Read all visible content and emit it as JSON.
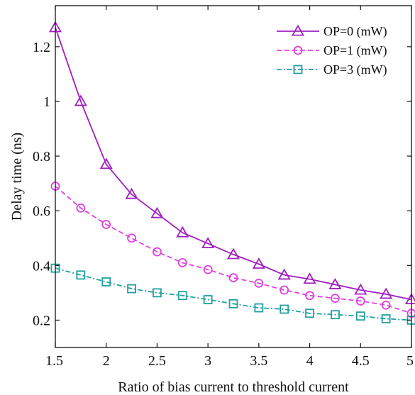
{
  "chart_data": {
    "type": "line",
    "title": "",
    "xlabel": "Ratio of bias current to threshold current",
    "ylabel": "Delay time (ns)",
    "xlim": [
      1.5,
      5
    ],
    "ylim": [
      0.1,
      1.35
    ],
    "x": [
      1.5,
      1.75,
      2,
      2.25,
      2.5,
      2.75,
      3,
      3.25,
      3.5,
      3.75,
      4,
      4.25,
      4.5,
      4.75,
      5
    ],
    "xticks": [
      1.5,
      2,
      2.5,
      3,
      3.5,
      4,
      4.5,
      5
    ],
    "xtick_labels": [
      "1.5",
      "2",
      "2.5",
      "3",
      "3.5",
      "4",
      "4.5",
      "5"
    ],
    "yticks": [
      0.2,
      0.4,
      0.6,
      0.8,
      1,
      1.2
    ],
    "ytick_labels": [
      "0.2",
      "0.4",
      "0.6",
      "0.8",
      "1",
      "1.2"
    ],
    "grid": false,
    "legend_position": "top-right",
    "series": [
      {
        "name": "OP=0 (mW)",
        "color": "#a020c0",
        "marker": "triangle",
        "line_style": "solid",
        "values": [
          1.27,
          1.0,
          0.77,
          0.66,
          0.59,
          0.52,
          0.48,
          0.44,
          0.405,
          0.365,
          0.35,
          0.33,
          0.31,
          0.295,
          0.275
        ]
      },
      {
        "name": "OP=1 (mW)",
        "color": "#e040e0",
        "marker": "circle",
        "line_style": "dashed",
        "values": [
          0.69,
          0.61,
          0.55,
          0.5,
          0.45,
          0.41,
          0.385,
          0.355,
          0.335,
          0.31,
          0.29,
          0.28,
          0.27,
          0.255,
          0.225
        ]
      },
      {
        "name": "OP=3 (mW)",
        "color": "#20a0a0",
        "marker": "square",
        "line_style": "dashdot",
        "values": [
          0.39,
          0.365,
          0.34,
          0.315,
          0.3,
          0.29,
          0.275,
          0.26,
          0.245,
          0.24,
          0.225,
          0.22,
          0.215,
          0.205,
          0.2
        ]
      }
    ]
  }
}
